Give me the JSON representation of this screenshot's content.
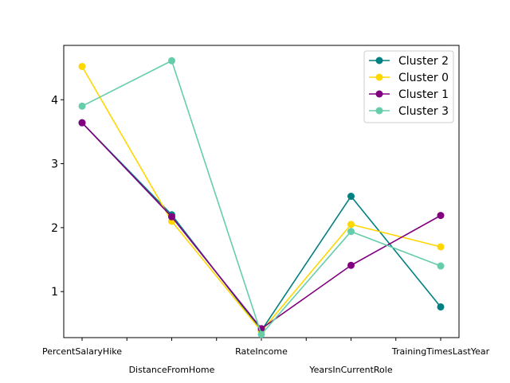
{
  "chart_data": {
    "type": "line",
    "categories": [
      "PercentSalaryHike",
      "DistanceFromHome",
      "RateIncome",
      "YearsInCurrentRole",
      "TrainingTimesLastYear"
    ],
    "ylim": [
      0.28,
      4.85
    ],
    "yticks": [
      1,
      2,
      3,
      4
    ],
    "grid": false,
    "legend_position": "top-right",
    "series": [
      {
        "name": "Cluster 2",
        "color": "#008080",
        "values": [
          3.64,
          2.2,
          0.39,
          2.49,
          0.76
        ]
      },
      {
        "name": "Cluster 0",
        "color": "#ffd700",
        "values": [
          4.52,
          2.1,
          0.38,
          2.05,
          1.7
        ]
      },
      {
        "name": "Cluster 1",
        "color": "#800080",
        "values": [
          3.64,
          2.17,
          0.42,
          1.41,
          2.19
        ]
      },
      {
        "name": "Cluster 3",
        "color": "#66cdaa",
        "values": [
          3.9,
          4.61,
          0.33,
          1.94,
          1.4
        ]
      }
    ]
  }
}
